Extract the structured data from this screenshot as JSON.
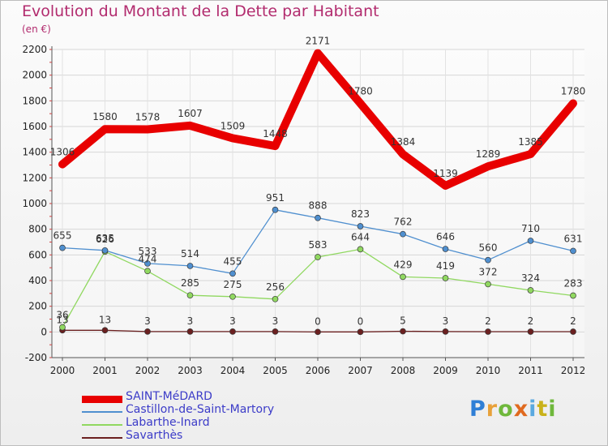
{
  "header": {
    "title": "Evolution du Montant de la Dette par Habitant",
    "unit": "(en €)"
  },
  "logo": {
    "letters": [
      "P",
      "r",
      "o",
      "x",
      "i",
      "t",
      "i"
    ]
  },
  "colors": {
    "title": "#b22b6e",
    "legend_text": "#3c3cc8",
    "logo_letters": [
      "#2f7fd6",
      "#e8a13a",
      "#6fb83c",
      "#e06a1f",
      "#5aa9e0",
      "#c9b21a",
      "#6fb83c"
    ]
  },
  "chart_data": {
    "type": "line",
    "title": "Evolution du Montant de la Dette par Habitant",
    "ylabel": "(en €)",
    "xlabel": "",
    "x": [
      "2000",
      "2001",
      "2002",
      "2003",
      "2004",
      "2005",
      "2006",
      "2007",
      "2008",
      "2009",
      "2010",
      "2011",
      "2012"
    ],
    "ylim": [
      -200,
      2200
    ],
    "yticks": [
      -200,
      0,
      200,
      400,
      600,
      800,
      1000,
      1200,
      1400,
      1600,
      1800,
      2000,
      2200
    ],
    "grid": true,
    "legend_position": "bottom-left",
    "series": [
      {
        "name": "SAINT-MéDARD",
        "color": "#e80000",
        "values": [
          1306,
          1580,
          1578,
          1607,
          1509,
          1448,
          2171,
          1780,
          1384,
          1139,
          1289,
          1385,
          1780
        ],
        "labels": [
          "1306",
          "1580",
          "1578",
          "1607",
          "1509",
          "1448",
          "2171",
          "1780",
          "1384",
          "1139",
          "1289",
          "1385",
          "1780"
        ]
      },
      {
        "name": "Castillon-de-Saint-Martory",
        "color": "#4f8fcf",
        "values": [
          655,
          635,
          533,
          514,
          455,
          951,
          888,
          823,
          762,
          646,
          560,
          710,
          631
        ],
        "labels": [
          "655",
          "635",
          "533",
          "514",
          "455",
          "951",
          "888",
          "823",
          "762",
          "646",
          "560",
          "710",
          "631"
        ]
      },
      {
        "name": "Labarthe-Inard",
        "color": "#90d860",
        "values": [
          36,
          626,
          474,
          285,
          275,
          256,
          583,
          644,
          429,
          419,
          372,
          324,
          283
        ],
        "labels": [
          "36",
          "626",
          "474",
          "285",
          "275",
          "256",
          "583",
          "644",
          "429",
          "419",
          "372",
          "324",
          "283"
        ]
      },
      {
        "name": "Savarthès",
        "color": "#6b2020",
        "values": [
          13,
          13,
          3,
          3,
          3,
          3,
          0,
          0,
          5,
          3,
          2,
          2,
          2
        ],
        "labels": [
          "13",
          "13",
          "3",
          "3",
          "3",
          "3",
          "0",
          "0",
          "5",
          "3",
          "2",
          "2",
          "2"
        ]
      }
    ]
  }
}
